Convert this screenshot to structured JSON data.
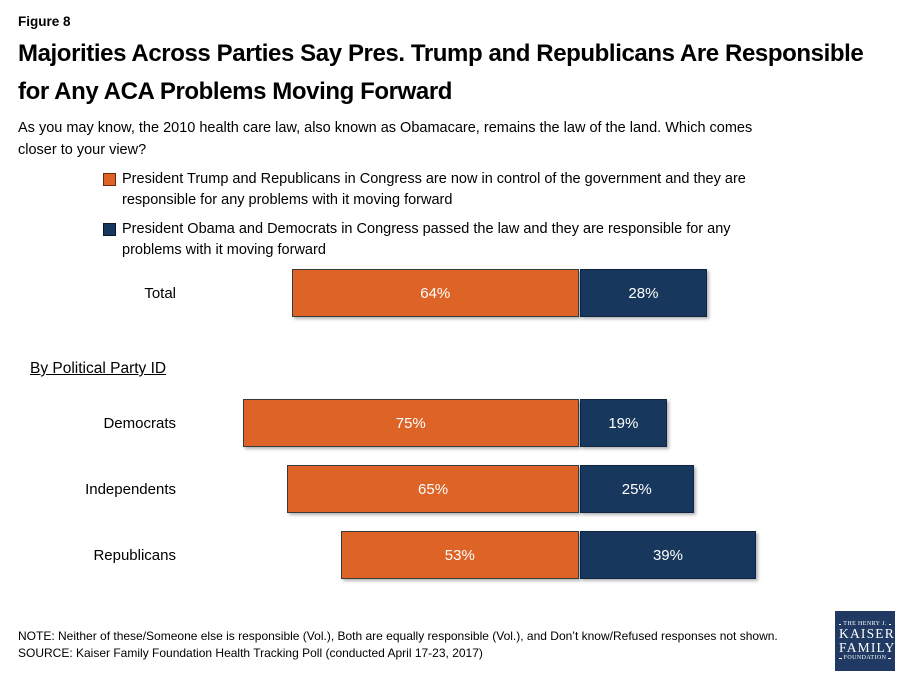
{
  "figure_label": "Figure 8",
  "title": "Majorities Across Parties Say Pres. Trump and Republicans Are Responsible for Any ACA Problems Moving Forward",
  "question": "As you may know, the 2010 health care law, also known as Obamacare, remains the law of the land. Which comes closer to your view?",
  "colors": {
    "trump_orange": "#DD6327",
    "obama_navy": "#17375C",
    "logo_bg": "#203A63"
  },
  "legend": [
    {
      "id": "trump-republicans",
      "color": "#DD6327",
      "label": "President Trump and Republicans in Congress are now in control of the government and they are responsible for any problems with it moving forward"
    },
    {
      "id": "obama-democrats",
      "color": "#17375C",
      "label": "President Obama and Democrats in Congress passed the law and they are responsible for any problems with it moving forward"
    }
  ],
  "section_heading": "By Political Party ID",
  "chart_data": {
    "type": "bar",
    "orientation": "horizontal",
    "unit": "percent",
    "value_suffix": "%",
    "series_names": [
      "President Trump and Republicans responsible",
      "President Obama and Democrats responsible"
    ],
    "rows": [
      {
        "label": "Total",
        "values": [
          64,
          28
        ]
      },
      {
        "label": "Democrats",
        "values": [
          75,
          19
        ]
      },
      {
        "label": "Independents",
        "values": [
          65,
          25
        ]
      },
      {
        "label": "Republicans",
        "values": [
          53,
          39
        ]
      }
    ]
  },
  "note": "NOTE: Neither of these/Someone else is responsible (Vol.), Both are equally responsible (Vol.), and Don’t know/Refused responses not shown.",
  "source": "SOURCE: Kaiser Family Foundation Health Tracking Poll (conducted April 17-23, 2017)",
  "logo": {
    "line1": "THE HENRY J.",
    "line2": "KAISER",
    "line3": "FAMILY",
    "line4": "FOUNDATION"
  }
}
